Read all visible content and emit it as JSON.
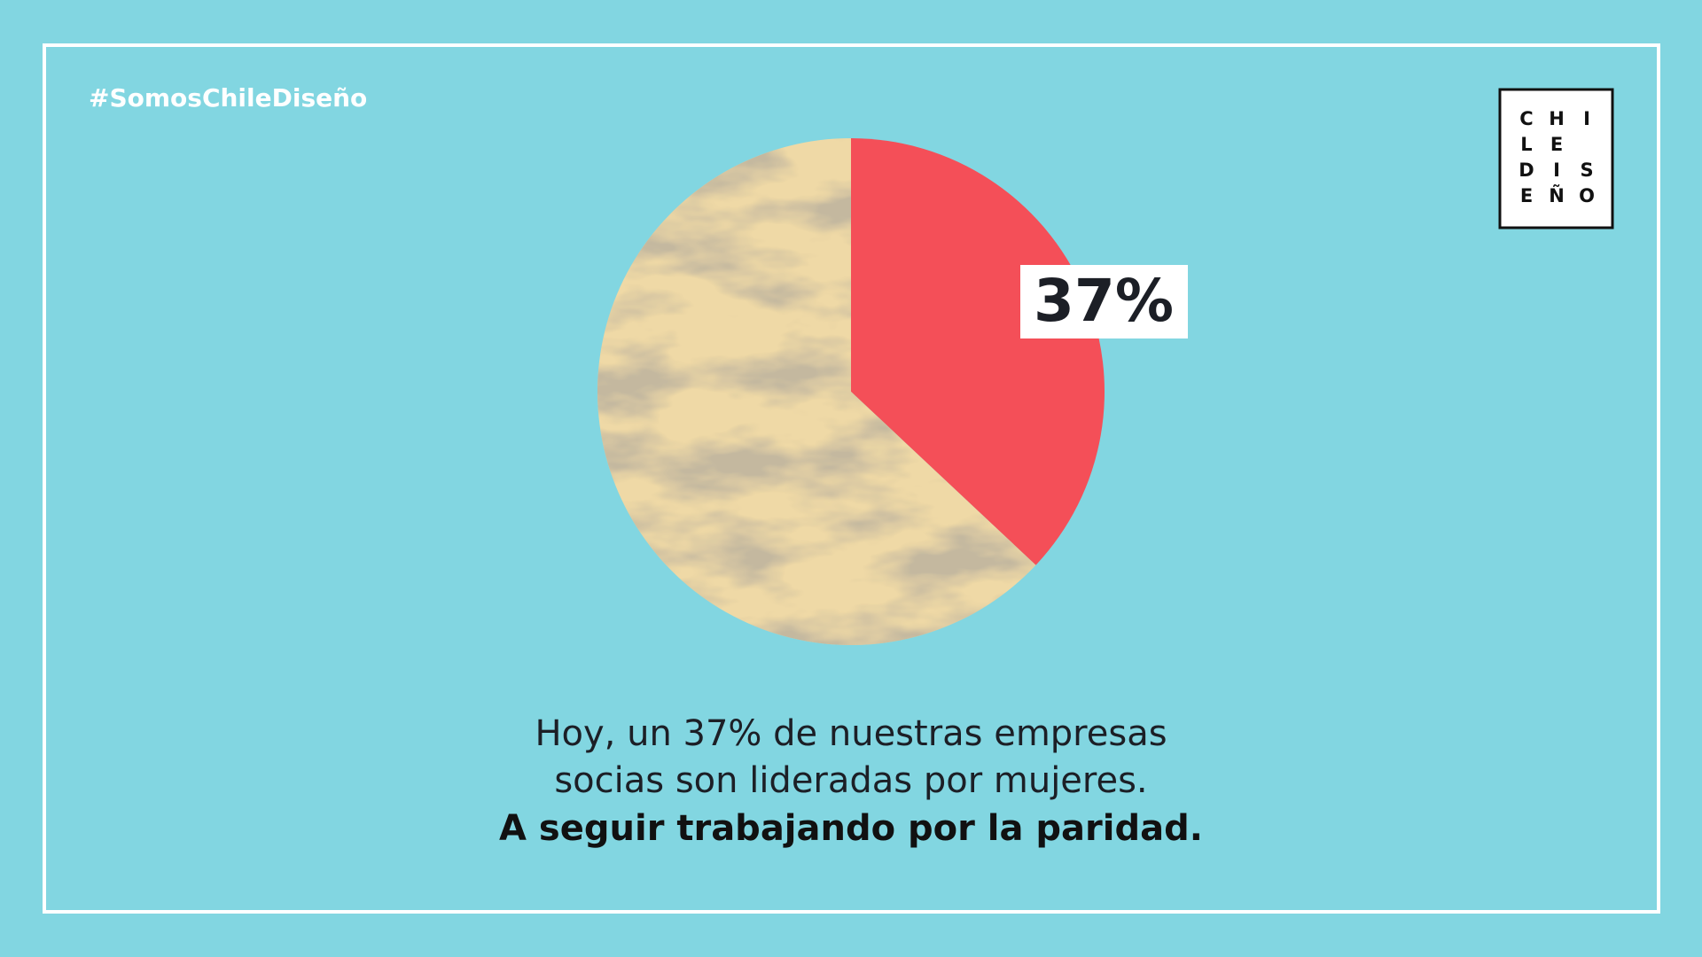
{
  "chart_data": {
    "type": "pie",
    "values": [
      37,
      63
    ],
    "value_labels": [
      "37%",
      null
    ],
    "colors": [
      "#f44f58",
      "#efd9a6"
    ]
  },
  "header": {
    "hashtag": "#SomosChileDiseño",
    "logo_rows": [
      "CHI",
      "LE",
      "DIS",
      "EÑO"
    ]
  },
  "caption": {
    "lines": [
      "Hoy, un 37% de nuestras empresas",
      "socias son lideradas por mujeres."
    ],
    "emphasis": "A seguir trabajando por la paridad."
  }
}
